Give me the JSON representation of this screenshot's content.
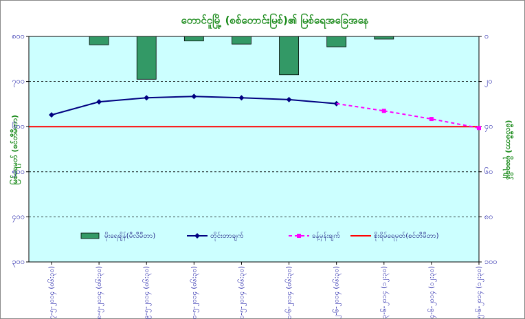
{
  "chart_data": {
    "type": "line_bar",
    "title": "တောင်ငူမြို့ (စစ်တောင်းမြစ်)၏ မြစ်ရေအခြေအနေ",
    "y_label": "မြစ်ရေမှတ် (စင်တီမီတာ)",
    "y2_label": "(မီလီမီတာ) မိုးရေချိန်",
    "categories": [
      "၂၇-၅-၂၀၁၄ (၀၆:၃၀)",
      "၂၈-၅-၂၀၁၄ (၀၆:၃၀)",
      "၂၉-၅-၂၀၁၄ (၀၆:၃၀)",
      "၃၀-၅-၂၀၁၄ (၀၆:၃၀)",
      "၃၁-၅-၂၀၁၄ (၀၆:၃၀)",
      "၁-၆-၂၀၁၄ (၀၆:၃၀)",
      "၂-၆-၂၀၁၄ (၀၆:၃၀)",
      "၃-၆-၂၀၁၄ (၁၂:၃၀)",
      "၄-၆-၂၀၁၄ (၁၂:၃၀)",
      "၅-၆-၂၀၁၄ (၁၂:၃၀)"
    ],
    "series": [
      {
        "name": "မိုးရေချိန်(မီလီမီတာ)",
        "kind": "bar",
        "axis": "y2",
        "color": "#339966",
        "values": [
          null,
          3.7,
          19,
          2,
          3.4,
          17,
          4.6,
          1.2,
          null,
          null
        ]
      },
      {
        "name": "တိုင်းတာချက်",
        "kind": "line",
        "color": "#000080",
        "marker": "diamond",
        "dashed": false,
        "values": [
          626,
          655,
          664,
          667,
          664,
          660,
          651,
          null,
          null,
          null
        ]
      },
      {
        "name": "ခန့်မှန်းချက်",
        "kind": "line",
        "color": "#ff00ff",
        "marker": "square",
        "dashed": true,
        "values": [
          null,
          null,
          null,
          null,
          null,
          null,
          null,
          635,
          617,
          597
        ]
      }
    ],
    "threshold": {
      "name": "စိုးရိမ်ရေမှတ်(စင်တီမီတာ)",
      "value": 600,
      "color": "#ff0000"
    },
    "ylim": [
      300,
      800
    ],
    "yticks": [
      {
        "value": 300,
        "label": "၃၀၀"
      },
      {
        "value": 400,
        "label": "၄၀၀"
      },
      {
        "value": 500,
        "label": "၅၀၀"
      },
      {
        "value": 600,
        "label": "၆၀၀"
      },
      {
        "value": 700,
        "label": "၇၀၀"
      },
      {
        "value": 800,
        "label": "၈၀၀"
      }
    ],
    "y2lim": [
      0,
      100
    ],
    "y2_reversed": true,
    "y2ticks": [
      {
        "value": 0,
        "label": "၀"
      },
      {
        "value": 20,
        "label": "၂၀"
      },
      {
        "value": 40,
        "label": "၄၀"
      },
      {
        "value": 60,
        "label": "၆၀"
      },
      {
        "value": 80,
        "label": "၈၀"
      },
      {
        "value": 100,
        "label": "၁၀၀"
      }
    ],
    "grid": true,
    "plot_background": "#ccffff"
  }
}
